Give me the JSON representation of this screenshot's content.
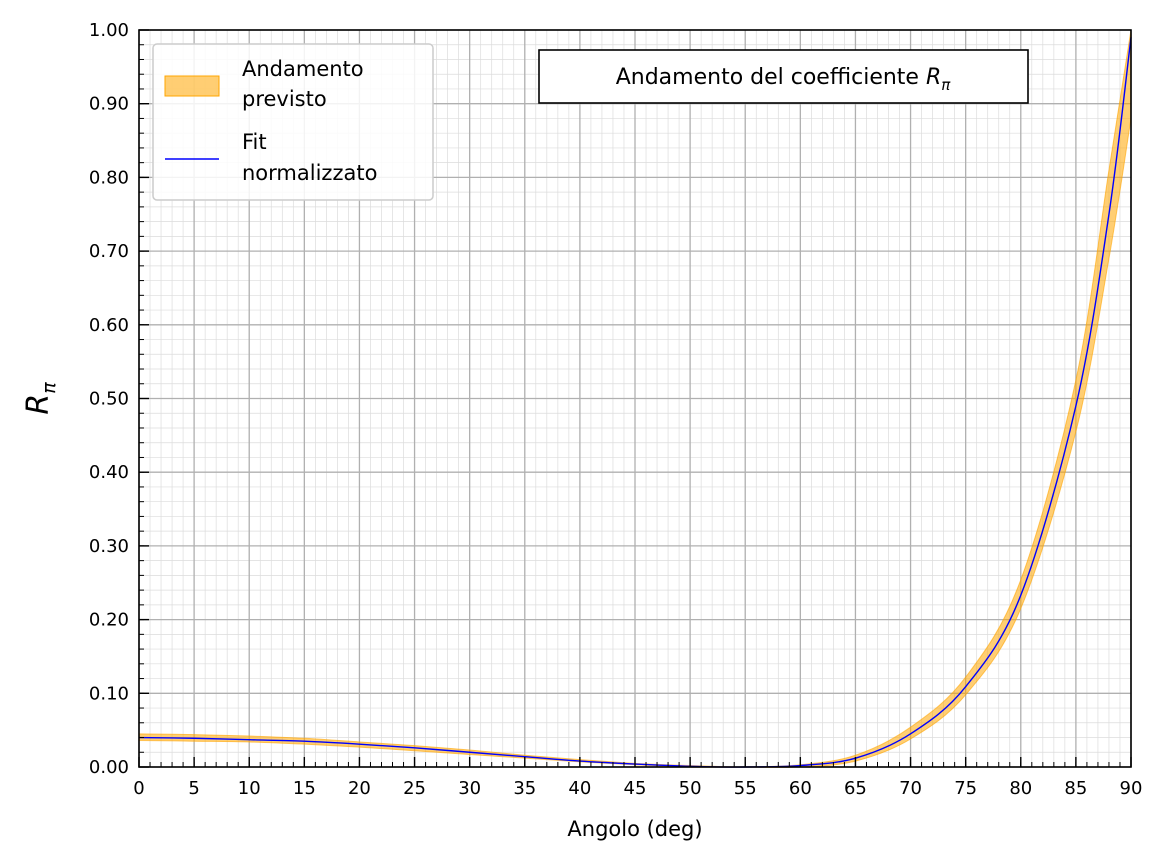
{
  "chart_data": {
    "type": "area",
    "title": "",
    "xlabel": "Angolo (deg)",
    "ylabel": {
      "main": "R",
      "sub": "π"
    },
    "xlim": [
      0,
      90
    ],
    "ylim": [
      0,
      1
    ],
    "xticks": [
      "0",
      "5",
      "10",
      "15",
      "20",
      "25",
      "30",
      "35",
      "40",
      "45",
      "50",
      "55",
      "60",
      "65",
      "70",
      "75",
      "80",
      "85",
      "90"
    ],
    "yticks": [
      "0.00",
      "0.10",
      "0.20",
      "0.30",
      "0.40",
      "0.50",
      "0.60",
      "0.70",
      "0.80",
      "0.90",
      "1.00"
    ],
    "grid": {
      "major": true,
      "minor": true
    },
    "legend_position": "top-left",
    "annotation": {
      "text": "Andamento del coefficiente ",
      "symbol_main": "R",
      "symbol_sub": "π",
      "position": "top-center"
    },
    "series": [
      {
        "name": "Andamento previsto",
        "legend_lines": [
          "Andamento",
          "previsto"
        ],
        "kind": "band",
        "color": "#ffa500",
        "x": [
          0,
          5,
          10,
          15,
          20,
          25,
          30,
          35,
          40,
          45,
          50,
          55,
          60,
          65,
          70,
          75,
          80,
          85,
          88,
          90
        ],
        "lower": [
          0.036,
          0.035,
          0.034,
          0.031,
          0.027,
          0.022,
          0.017,
          0.012,
          0.007,
          0.003,
          0.0,
          0.0,
          0.0,
          0.008,
          0.038,
          0.098,
          0.215,
          0.455,
          0.69,
          0.88
        ],
        "upper": [
          0.045,
          0.044,
          0.042,
          0.039,
          0.034,
          0.029,
          0.023,
          0.016,
          0.01,
          0.005,
          0.002,
          0.0,
          0.003,
          0.016,
          0.054,
          0.122,
          0.254,
          0.525,
          0.81,
          1.0
        ]
      },
      {
        "name": "Fit normalizzato",
        "legend_lines": [
          "Fit",
          "normalizzato"
        ],
        "kind": "line",
        "color": "#0000ff",
        "x": [
          0,
          5,
          10,
          15,
          20,
          25,
          30,
          35,
          40,
          45,
          50,
          55,
          60,
          65,
          70,
          75,
          80,
          85,
          88,
          90
        ],
        "y": [
          0.04,
          0.039,
          0.037,
          0.035,
          0.031,
          0.026,
          0.02,
          0.014,
          0.008,
          0.004,
          0.001,
          0.0,
          0.002,
          0.012,
          0.045,
          0.109,
          0.233,
          0.49,
          0.75,
          0.99
        ]
      }
    ]
  }
}
